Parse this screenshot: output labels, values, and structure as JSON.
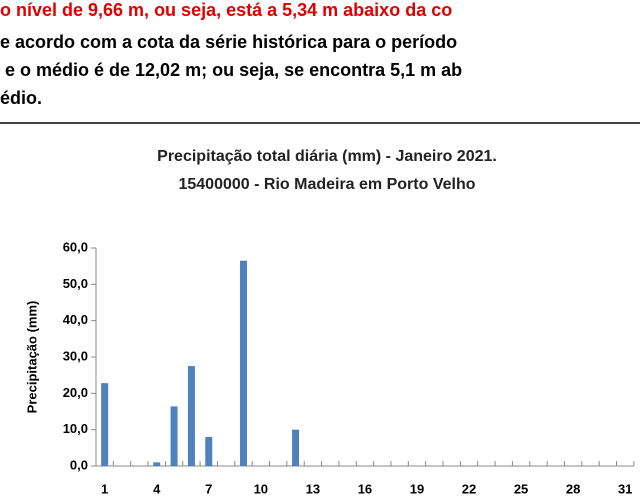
{
  "document": {
    "lines": [
      "o nível de 9,66 m, ou seja, está a 5,34 m abaixo da co",
      "e acordo com a cota da série histórica para o período",
      " e o médio é de 12,02 m; ou seja, se encontra 5,1 m ab",
      "édio."
    ]
  },
  "chart_data": {
    "type": "bar",
    "title": [
      "Precipitação total diária (mm) - Janeiro 2021.",
      "15400000  - Rio Madeira em Porto Velho"
    ],
    "y_label": "Precipitação (mm)",
    "categories": [
      "1",
      null,
      null,
      "4",
      null,
      null,
      "7",
      null,
      null,
      "10",
      null,
      null,
      "13",
      null,
      null,
      "16",
      null,
      null,
      "19",
      null,
      null,
      "22",
      null,
      null,
      "25",
      null,
      null,
      "28",
      null,
      null,
      "31"
    ],
    "values": [
      22.8,
      0,
      0,
      1.0,
      16.4,
      27.5,
      8.0,
      0,
      56.5,
      0,
      0,
      10.0,
      0,
      0,
      0,
      0,
      0,
      0,
      0,
      0,
      0,
      0,
      0,
      0,
      0,
      0,
      0,
      0,
      0,
      0,
      0
    ],
    "color": "#4f81bd",
    "ylim": [
      0,
      60
    ],
    "yticks": [
      {
        "value": 0,
        "label": "0,0"
      },
      {
        "value": 10,
        "label": "10,0"
      },
      {
        "value": 20,
        "label": "20,0"
      },
      {
        "value": 30,
        "label": "30,0"
      },
      {
        "value": 40,
        "label": "40,0"
      },
      {
        "value": 50,
        "label": "50,0"
      },
      {
        "value": 60,
        "label": "60,0"
      }
    ],
    "grid": false
  }
}
